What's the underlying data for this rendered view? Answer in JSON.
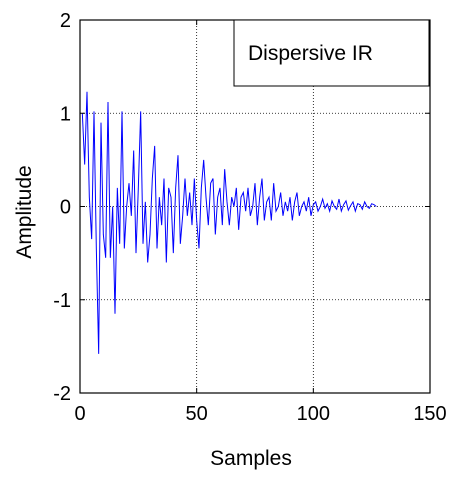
{
  "chart_data": {
    "type": "line",
    "title": "",
    "xlabel": "Samples",
    "ylabel": "Amplitude",
    "xlim": [
      0,
      150
    ],
    "ylim": [
      -2,
      2
    ],
    "xticks": [
      0,
      50,
      100,
      150
    ],
    "yticks": [
      -2,
      -1,
      0,
      1,
      2
    ],
    "xtick_labels": [
      "0",
      "50",
      "100",
      "150"
    ],
    "ytick_labels": [
      "-2",
      "-1",
      "0",
      "1",
      "2"
    ],
    "grid": true,
    "grid_style": "dotted",
    "legend_position": "top-right",
    "series": [
      {
        "name": "Dispersive IR",
        "color": "#0000ff",
        "x": [
          1,
          2,
          3,
          4,
          5,
          6,
          7,
          8,
          9,
          10,
          11,
          12,
          13,
          14,
          15,
          16,
          17,
          18,
          19,
          20,
          21,
          22,
          23,
          24,
          25,
          26,
          27,
          28,
          29,
          30,
          31,
          32,
          33,
          34,
          35,
          36,
          37,
          38,
          39,
          40,
          41,
          42,
          43,
          44,
          45,
          46,
          47,
          48,
          49,
          50,
          51,
          52,
          53,
          54,
          55,
          56,
          57,
          58,
          59,
          60,
          61,
          62,
          63,
          64,
          65,
          66,
          67,
          68,
          69,
          70,
          71,
          72,
          73,
          74,
          75,
          76,
          77,
          78,
          79,
          80,
          81,
          82,
          83,
          84,
          85,
          86,
          87,
          88,
          89,
          90,
          91,
          92,
          93,
          94,
          95,
          96,
          97,
          98,
          99,
          100,
          101,
          102,
          103,
          104,
          105,
          106,
          107,
          108,
          109,
          110,
          111,
          112,
          113,
          114,
          115,
          116,
          117,
          118,
          119,
          120,
          121,
          122,
          123,
          124,
          125,
          126,
          127
        ],
        "y": [
          1.0,
          0.45,
          1.23,
          0.1,
          -0.35,
          1.02,
          -0.45,
          -1.58,
          0.9,
          -0.3,
          -0.55,
          1.12,
          -0.55,
          0.0,
          -1.15,
          0.2,
          -0.4,
          1.02,
          -0.45,
          0.0,
          0.25,
          -0.1,
          0.6,
          -0.5,
          0.2,
          1.02,
          -0.4,
          0.05,
          -0.6,
          -0.3,
          0.3,
          0.65,
          -0.45,
          0.1,
          -0.2,
          0.3,
          -0.6,
          0.2,
          0.1,
          -0.5,
          0.2,
          0.55,
          -0.4,
          -0.1,
          0.3,
          -0.1,
          0.15,
          -0.2,
          0.3,
          -0.15,
          -0.45,
          0.2,
          0.5,
          0.1,
          -0.2,
          0.25,
          0.3,
          -0.3,
          0.1,
          0.2,
          -0.2,
          0.4,
          0.05,
          -0.2,
          0.1,
          0.0,
          0.2,
          -0.25,
          0.1,
          0.15,
          -0.05,
          0.2,
          -0.1,
          0.0,
          0.25,
          -0.2,
          0.1,
          0.3,
          -0.15,
          0.05,
          0.1,
          -0.15,
          0.25,
          -0.05,
          0.0,
          0.15,
          -0.1,
          0.05,
          -0.05,
          0.1,
          -0.15,
          0.05,
          0.15,
          -0.1,
          0.0,
          0.05,
          -0.05,
          0.1,
          -0.1,
          0.02,
          0.05,
          -0.05,
          0.0,
          0.08,
          -0.02,
          0.03,
          -0.05,
          0.06,
          0.0,
          -0.03,
          0.08,
          -0.05,
          0.02,
          0.06,
          -0.04,
          0.01,
          0.05,
          -0.05,
          0.03,
          0.02,
          -0.03,
          0.05,
          0.0,
          -0.02,
          0.03,
          0.02,
          0.0
        ]
      }
    ],
    "legend": {
      "text": "Dispersive IR"
    }
  }
}
